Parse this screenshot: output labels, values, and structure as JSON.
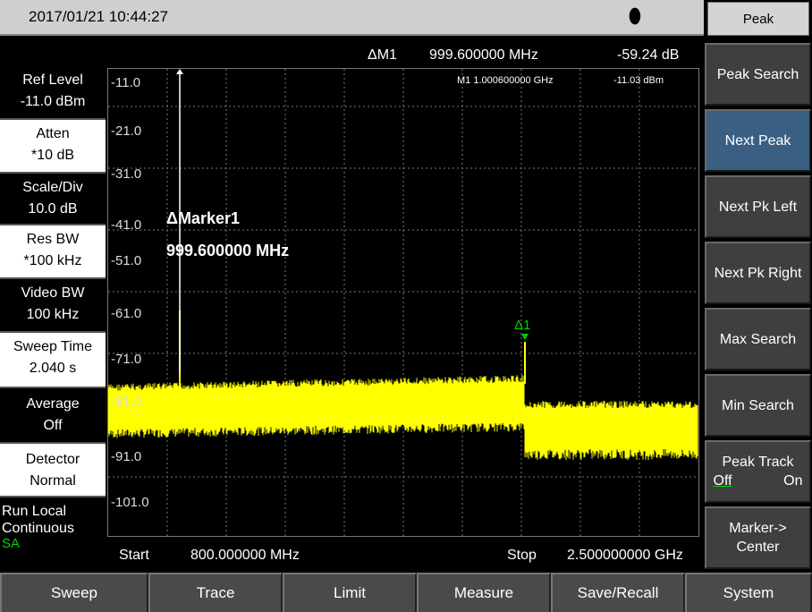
{
  "status": {
    "datetime": "2017/01/21  10:44:27",
    "plug_icon": "plug-icon"
  },
  "softkeys": {
    "title": "Peak",
    "items": [
      {
        "label": "Peak Search"
      },
      {
        "label": "Next Peak"
      },
      {
        "label": "Next Pk Left"
      },
      {
        "label": "Next Pk Right"
      },
      {
        "label": "Max Search"
      },
      {
        "label": "Min Search"
      },
      {
        "label": "Peak Track",
        "off": "Off",
        "on": "On"
      },
      {
        "label1": "Marker->",
        "label2": "Center"
      }
    ]
  },
  "params": [
    {
      "name": "Ref Level",
      "value": "-11.0 dBm"
    },
    {
      "name": "Atten",
      "value": "*10 dB"
    },
    {
      "name": "Scale/Div",
      "value": "10.0 dB"
    },
    {
      "name": "Res BW",
      "value": "*100 kHz"
    },
    {
      "name": "Video BW",
      "value": "100 kHz"
    },
    {
      "name": "Sweep Time",
      "value": "2.040 s"
    },
    {
      "name": "Average",
      "value": "Off"
    },
    {
      "name": "Detector",
      "value": "Normal"
    }
  ],
  "run": {
    "line1": "Run  Local",
    "line2": "Continuous",
    "mode": "SA"
  },
  "marker_header": {
    "label": "ΔM1",
    "freq": "999.600000 MHz",
    "amp": "-59.24  dB"
  },
  "marker_ref": {
    "label": "M1  1.000600000 GHz",
    "amp": "-11.03 dBm"
  },
  "marker_readout": {
    "title": "ΔMarker1",
    "freq": "999.600000 MHz"
  },
  "delta_marker_label": "Δ1",
  "yaxis": [
    "-11.0",
    "-21.0",
    "-31.0",
    "-41.0",
    "-51.0",
    "-61.0",
    "-71.0",
    "-81.0",
    "-91.0",
    "-101.0"
  ],
  "freq": {
    "start_label": "Start",
    "start": "800.000000 MHz",
    "stop_label": "Stop",
    "stop": "2.500000000 GHz"
  },
  "bottom_keys": [
    "Sweep",
    "Trace",
    "Limit",
    "Measure",
    "Save/Recall",
    "System"
  ],
  "colors": {
    "trace": "#ffff00",
    "marker_ref": "#ffffff",
    "marker_delta": "#00d000",
    "active_key": "#3a5f82"
  }
}
